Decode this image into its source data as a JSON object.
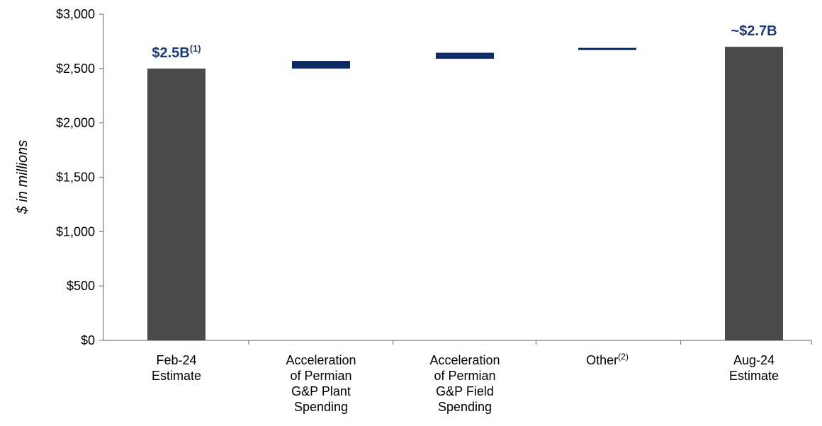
{
  "chart_data": {
    "type": "waterfall",
    "ylabel": "$ in millions",
    "ylim": [
      0,
      3000
    ],
    "yticks": [
      {
        "value": 0,
        "label": "$0"
      },
      {
        "value": 500,
        "label": "$500"
      },
      {
        "value": 1000,
        "label": "$1,000"
      },
      {
        "value": 1500,
        "label": "$1,500"
      },
      {
        "value": 2000,
        "label": "$2,000"
      },
      {
        "value": 2500,
        "label": "$2,500"
      },
      {
        "value": 3000,
        "label": "$3,000"
      }
    ],
    "grid": false,
    "categories": [
      {
        "lines": [
          "Feb-24",
          "Estimate"
        ],
        "sup": ""
      },
      {
        "lines": [
          "Acceleration",
          "of Permian",
          "G&P Plant",
          "Spending"
        ],
        "sup": ""
      },
      {
        "lines": [
          "Acceleration",
          "of Permian",
          "G&P Field",
          "Spending"
        ],
        "sup": ""
      },
      {
        "lines": [
          "Other"
        ],
        "sup": "(2)"
      },
      {
        "lines": [
          "Aug-24",
          "Estimate"
        ],
        "sup": ""
      }
    ],
    "bars": [
      {
        "kind": "total",
        "start": 0,
        "end": 2500,
        "label": "$2.5B",
        "label_sup": "(1)"
      },
      {
        "kind": "delta",
        "start": 2500,
        "end": 2570,
        "label": "",
        "label_sup": ""
      },
      {
        "kind": "delta",
        "start": 2590,
        "end": 2645,
        "label": "",
        "label_sup": ""
      },
      {
        "kind": "delta",
        "start": 2670,
        "end": 2690,
        "label": "",
        "label_sup": ""
      },
      {
        "kind": "total",
        "start": 0,
        "end": 2700,
        "label": "~$2.7B",
        "label_sup": ""
      }
    ],
    "colors": {
      "total": "#4a4a4a",
      "delta": "#0b2a66",
      "label": "#1f3a73",
      "axis": "#7f7f7f",
      "text": "#000000"
    }
  }
}
